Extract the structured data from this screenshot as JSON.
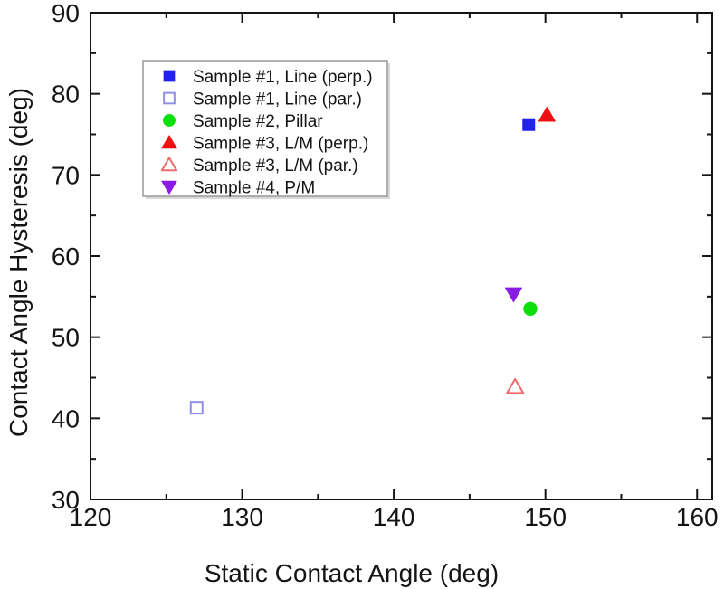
{
  "figure": {
    "background": "#ffffff"
  },
  "chart_data": {
    "type": "scatter",
    "title": "",
    "xlabel": "Static Contact Angle (deg)",
    "ylabel": "Contact Angle Hysteresis (deg)",
    "xlim": [
      120,
      161
    ],
    "ylim": [
      30,
      90
    ],
    "x_major_ticks": [
      120,
      130,
      140,
      150,
      160
    ],
    "x_minor_ticks": [
      125,
      135,
      145,
      155
    ],
    "y_major_ticks": [
      30,
      40,
      50,
      60,
      70,
      80,
      90
    ],
    "y_minor_ticks": [
      35,
      45,
      55,
      65,
      75,
      85
    ],
    "grid": false,
    "axis_color": "#141414",
    "tick_label_color": "#141414",
    "legend": {
      "position": "upper-left-inside",
      "background": "#ffffff",
      "border_color": "#999999",
      "shadow_color": "#d9d9d9"
    },
    "series": [
      {
        "name": "Sample #1, Line (perp.)",
        "marker": "square",
        "fill": "filled",
        "color": "#2121f0",
        "points": [
          [
            148.9,
            76.2
          ]
        ]
      },
      {
        "name": "Sample #1, Line (par.)",
        "marker": "square",
        "fill": "open",
        "color": "#9090e8",
        "points": [
          [
            127.0,
            41.3
          ]
        ]
      },
      {
        "name": "Sample #2, Pillar",
        "marker": "circle",
        "fill": "filled",
        "color": "#0ddf0d",
        "points": [
          [
            149.0,
            53.5
          ]
        ]
      },
      {
        "name": "Sample #3, L/M (perp.)",
        "marker": "triangle-up",
        "fill": "filled",
        "color": "#ee1111",
        "points": [
          [
            150.1,
            77.4
          ]
        ]
      },
      {
        "name": "Sample #3, L/M (par.)",
        "marker": "triangle-up",
        "fill": "open",
        "color": "#ef6a6a",
        "points": [
          [
            148.0,
            43.9
          ]
        ]
      },
      {
        "name": "Sample #4, P/M",
        "marker": "triangle-down",
        "fill": "filled",
        "color": "#8a1ae6",
        "points": [
          [
            147.9,
            55.3
          ]
        ]
      }
    ]
  }
}
